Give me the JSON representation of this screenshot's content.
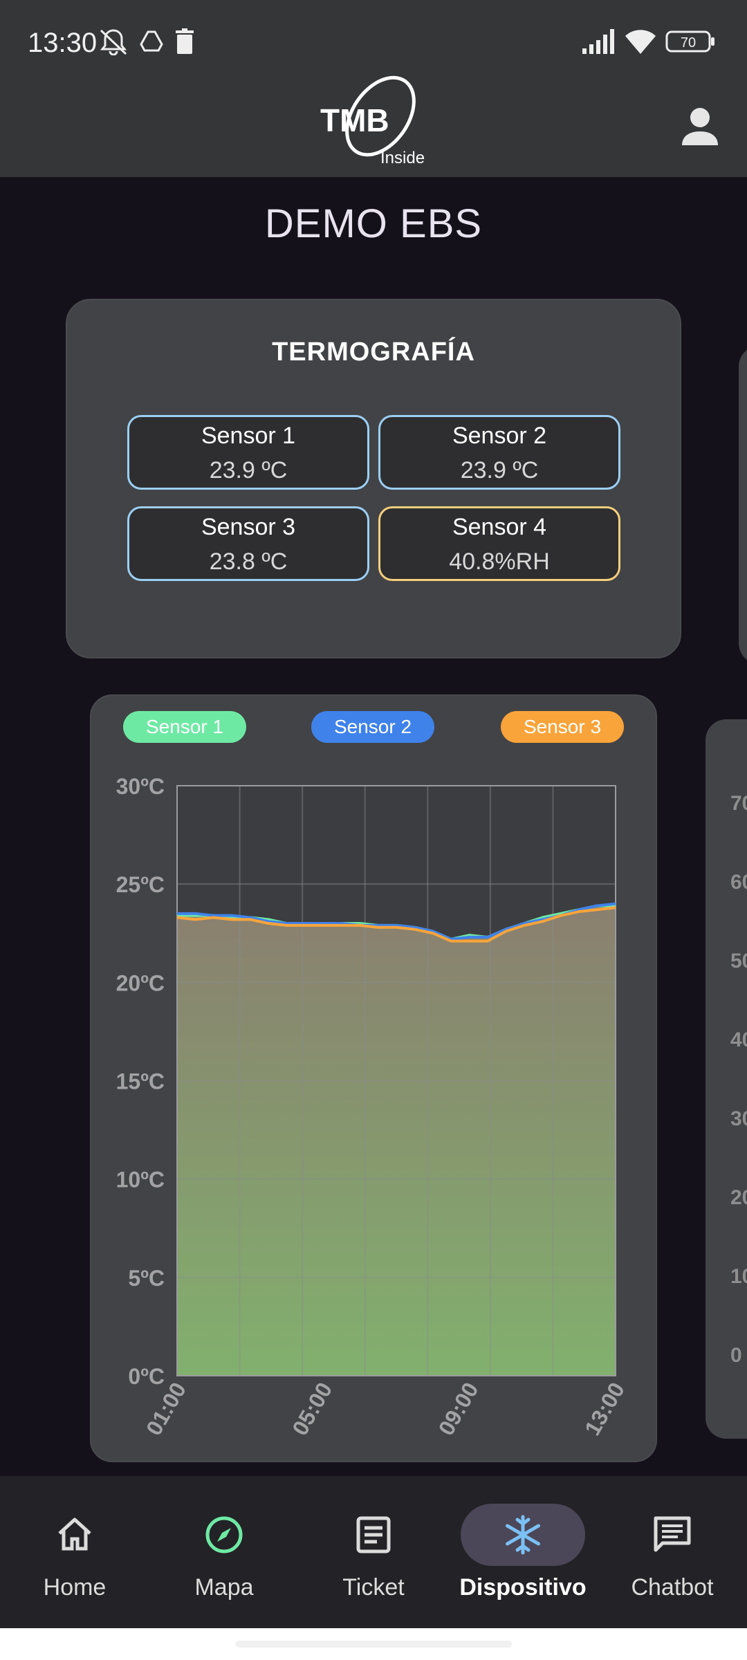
{
  "status_bar": {
    "time": "13:30",
    "battery": "70",
    "icons": [
      "bell-off-icon",
      "drive-icon",
      "trash-icon",
      "signal-icon",
      "wifi-icon",
      "battery-icon"
    ]
  },
  "header": {
    "logo_text": "TMB",
    "logo_subtext": "Inside",
    "profile_icon": "person-icon"
  },
  "page": {
    "title": "DEMO EBS"
  },
  "termografia": {
    "title": "TERMOGRAFÍA",
    "sensors": [
      {
        "name": "Sensor 1",
        "value": "23.9 ºC",
        "border": "#9ccff5"
      },
      {
        "name": "Sensor 2",
        "value": "23.9 ºC",
        "border": "#9ccff5"
      },
      {
        "name": "Sensor 3",
        "value": "23.8 ºC",
        "border": "#9ccff5"
      },
      {
        "name": "Sensor 4",
        "value": "40.8%RH",
        "border": "#f5cf7e"
      }
    ]
  },
  "side_axis_ticks": [
    "70",
    "60",
    "50",
    "40",
    "30",
    "20",
    "10",
    "0"
  ],
  "chart_data": {
    "type": "area",
    "legend": [
      {
        "name": "Sensor 1",
        "color": "#6ee9a4"
      },
      {
        "name": "Sensor 2",
        "color": "#3f82ea"
      },
      {
        "name": "Sensor 3",
        "color": "#f9a43a"
      }
    ],
    "y_ticks": [
      "0ºC",
      "5ºC",
      "10ºC",
      "15ºC",
      "20ºC",
      "25ºC",
      "30ºC"
    ],
    "x_ticks": [
      "01:00",
      "05:00",
      "09:00",
      "13:00"
    ],
    "ylim": [
      0,
      30
    ],
    "x_hours": [
      1,
      1.5,
      2,
      2.5,
      3,
      3.5,
      4,
      4.5,
      5,
      5.5,
      6,
      6.5,
      7,
      7.5,
      8,
      8.5,
      9,
      9.5,
      10,
      10.5,
      11,
      11.5,
      12,
      12.5,
      13
    ],
    "series": [
      {
        "name": "Sensor 1",
        "color": "#6ee9a4",
        "values": [
          23.4,
          23.4,
          23.4,
          23.3,
          23.3,
          23.2,
          23.0,
          23.0,
          23.0,
          23.0,
          23.0,
          22.9,
          22.9,
          22.8,
          22.6,
          22.2,
          22.4,
          22.3,
          22.7,
          23.0,
          23.3,
          23.5,
          23.7,
          23.9,
          23.9
        ]
      },
      {
        "name": "Sensor 2",
        "color": "#3f82ea",
        "values": [
          23.5,
          23.5,
          23.4,
          23.4,
          23.3,
          23.1,
          23.0,
          23.0,
          23.0,
          23.0,
          22.9,
          22.9,
          22.9,
          22.8,
          22.6,
          22.2,
          22.3,
          22.3,
          22.7,
          23.0,
          23.2,
          23.4,
          23.7,
          23.9,
          24.0
        ]
      },
      {
        "name": "Sensor 3",
        "color": "#f9a43a",
        "values": [
          23.3,
          23.2,
          23.3,
          23.2,
          23.2,
          23.0,
          22.9,
          22.9,
          22.9,
          22.9,
          22.9,
          22.8,
          22.8,
          22.7,
          22.5,
          22.1,
          22.1,
          22.1,
          22.6,
          22.9,
          23.1,
          23.4,
          23.6,
          23.7,
          23.8
        ]
      }
    ],
    "grid": true,
    "fill_top_color": "#8a7f6f",
    "fill_bottom_color": "#82b06e"
  },
  "bottom_nav": {
    "items": [
      {
        "label": "Home",
        "icon": "home-icon",
        "active": false
      },
      {
        "label": "Mapa",
        "icon": "compass-icon",
        "active": false
      },
      {
        "label": "Ticket",
        "icon": "ticket-icon",
        "active": false
      },
      {
        "label": "Dispositivo",
        "icon": "snowflake-icon",
        "active": true
      },
      {
        "label": "Chatbot",
        "icon": "chat-icon",
        "active": false
      }
    ]
  }
}
